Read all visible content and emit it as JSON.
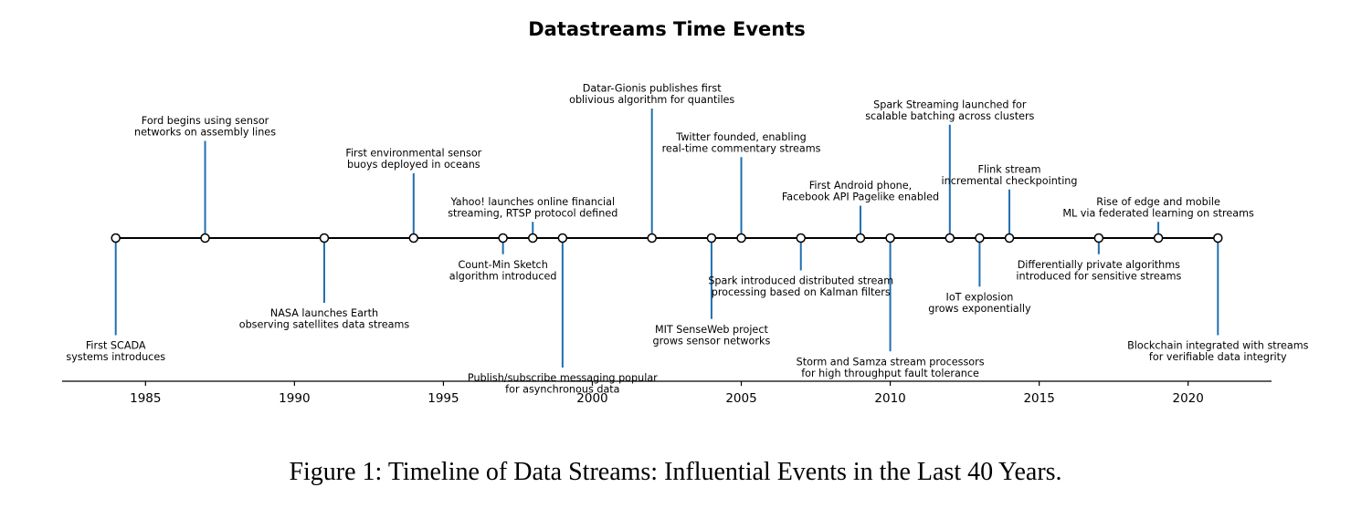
{
  "chart_data": {
    "type": "timeline",
    "title": "Datastreams Time Events",
    "xlim": [
      1982.2,
      2022.8
    ],
    "xticks": [
      1985,
      1990,
      1995,
      2000,
      2005,
      2010,
      2015,
      2020
    ],
    "stem_color": "#1f6fb0",
    "events": [
      {
        "year": 1984,
        "level": -3,
        "lines": [
          "First SCADA",
          "systems introduces"
        ]
      },
      {
        "year": 1987,
        "level": 3,
        "lines": [
          "Ford begins using sensor",
          "networks on assembly lines"
        ]
      },
      {
        "year": 1991,
        "level": -2,
        "lines": [
          "NASA launches Earth",
          "observing satellites data streams"
        ]
      },
      {
        "year": 1994,
        "level": 2,
        "lines": [
          "First environmental sensor",
          "buoys deployed in oceans"
        ]
      },
      {
        "year": 1997,
        "level": -0.5,
        "lines": [
          "Count-Min Sketch",
          "algorithm introduced"
        ]
      },
      {
        "year": 1998,
        "level": 0.5,
        "lines": [
          "Yahoo! launches online financial",
          "streaming, RTSP protocol defined"
        ]
      },
      {
        "year": 1999,
        "level": -4,
        "lines": [
          "Publish/subscribe messaging popular",
          "for asynchronous data"
        ]
      },
      {
        "year": 2002,
        "level": 4,
        "lines": [
          "Datar-Gionis publishes first",
          "oblivious algorithm for quantiles"
        ]
      },
      {
        "year": 2004,
        "level": -2.5,
        "lines": [
          "MIT SenseWeb project",
          "grows sensor networks"
        ]
      },
      {
        "year": 2005,
        "level": 2.5,
        "lines": [
          "Twitter founded, enabling",
          "real-time commentary streams"
        ]
      },
      {
        "year": 2007,
        "level": -1,
        "lines": [
          "Spark introduced distributed stream",
          "processing based on Kalman filters"
        ]
      },
      {
        "year": 2009,
        "level": 1,
        "lines": [
          "First Android phone,",
          "Facebook API Pagelike enabled"
        ]
      },
      {
        "year": 2010,
        "level": -3.5,
        "lines": [
          "Storm and Samza stream processors",
          "for high throughput fault tolerance"
        ]
      },
      {
        "year": 2012,
        "level": 3.5,
        "lines": [
          "Spark Streaming launched for",
          "scalable batching across clusters"
        ]
      },
      {
        "year": 2013,
        "level": -1.5,
        "lines": [
          "IoT explosion",
          "grows exponentially"
        ]
      },
      {
        "year": 2014,
        "level": 1.5,
        "lines": [
          "Flink stream",
          "incremental checkpointing"
        ]
      },
      {
        "year": 2017,
        "level": -0.5,
        "lines": [
          "Differentially private algorithms",
          "introduced for sensitive streams"
        ]
      },
      {
        "year": 2019,
        "level": 0.5,
        "lines": [
          "Rise of edge and mobile",
          "ML via federated learning on streams"
        ]
      },
      {
        "year": 2021,
        "level": -3,
        "lines": [
          "Blockchain integrated with streams",
          "for verifiable data integrity"
        ]
      }
    ]
  },
  "caption": "Figure 1: Timeline of Data Streams: Influential Events in the Last 40 Years."
}
